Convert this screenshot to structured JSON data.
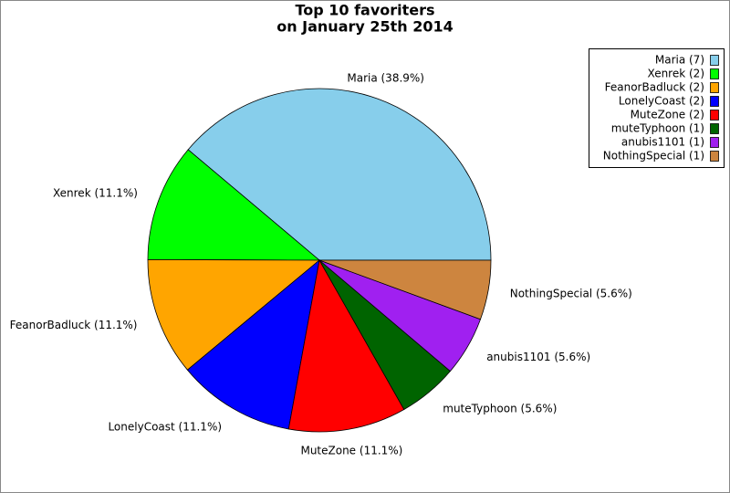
{
  "chart_data": {
    "type": "pie",
    "title": [
      "Top 10 favoriters",
      "on January 25th 2014"
    ],
    "values": [
      38.9,
      11.1,
      11.1,
      11.1,
      11.1,
      5.6,
      5.6,
      5.6
    ],
    "value_labels": [
      "Maria (38.9%)",
      "Xenrek (11.1%)",
      "FeanorBadluck (11.1%)",
      "LonelyCoast (11.1%)",
      "MuteZone (11.1%)",
      "muteTyphoon (5.6%)",
      "anubis1101 (5.6%)",
      "NothingSpecial (5.6%)"
    ],
    "legend_labels": [
      "Maria (7)",
      "Xenrek (2)",
      "FeanorBadluck (2)",
      "LonelyCoast (2)",
      "MuteZone (2)",
      "muteTyphoon (1)",
      "anubis1101 (1)",
      "NothingSpecial (1)"
    ],
    "colors": [
      "#87ceeb",
      "#00ff00",
      "#ffa500",
      "#0000ff",
      "#ff0000",
      "#006400",
      "#a020f0",
      "#cd853f"
    ],
    "legend": "top-right"
  }
}
